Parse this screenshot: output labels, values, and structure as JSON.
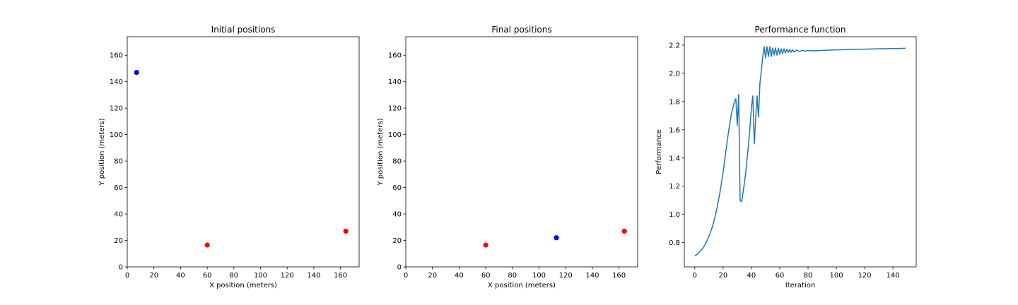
{
  "chart_data": [
    {
      "type": "scatter",
      "title": "Initial positions",
      "xlabel": "X position (meters)",
      "ylabel": "Y position (meters)",
      "xlim": [
        0,
        174
      ],
      "ylim": [
        0,
        174
      ],
      "xticks": [
        0,
        20,
        40,
        60,
        80,
        100,
        120,
        140,
        160
      ],
      "yticks": [
        0,
        20,
        40,
        60,
        80,
        100,
        120,
        140,
        160
      ],
      "grid": false,
      "points": [
        {
          "x": 7,
          "y": 147,
          "color": "#0000ff"
        },
        {
          "x": 60,
          "y": 16.5,
          "color": "#ff0000"
        },
        {
          "x": 164,
          "y": 27,
          "color": "#ff0000"
        }
      ]
    },
    {
      "type": "scatter",
      "title": "Final positions",
      "xlabel": "X position (meters)",
      "ylabel": "Y position (meters)",
      "xlim": [
        0,
        174
      ],
      "ylim": [
        0,
        174
      ],
      "xticks": [
        0,
        20,
        40,
        60,
        80,
        100,
        120,
        140,
        160
      ],
      "yticks": [
        0,
        20,
        40,
        60,
        80,
        100,
        120,
        140,
        160
      ],
      "grid": false,
      "points": [
        {
          "x": 60,
          "y": 16.5,
          "color": "#ff0000"
        },
        {
          "x": 113,
          "y": 22,
          "color": "#0000ff"
        },
        {
          "x": 164,
          "y": 27,
          "color": "#ff0000"
        }
      ]
    },
    {
      "type": "line",
      "title": "Performance function",
      "xlabel": "Iteration",
      "ylabel": "Performance",
      "xlim": [
        -7.4,
        156.4
      ],
      "ylim": [
        0.628,
        2.26
      ],
      "xticks": [
        0,
        20,
        40,
        60,
        80,
        100,
        120,
        140
      ],
      "yticks": [
        0.8,
        1.0,
        1.2,
        1.4,
        1.6,
        1.8,
        2.0,
        2.2
      ],
      "grid": false,
      "series": [
        {
          "color": "#1f77b4",
          "x": [
            0,
            2,
            4,
            6,
            8,
            10,
            12,
            14,
            16,
            18,
            20,
            22,
            24,
            26,
            28,
            29,
            30,
            31,
            32,
            33,
            34,
            35,
            36,
            37,
            38,
            39,
            40,
            41,
            42,
            43,
            44,
            45,
            46,
            47,
            48,
            49,
            50,
            51,
            52,
            53,
            54,
            55,
            56,
            57,
            58,
            59,
            60,
            61,
            62,
            63,
            64,
            65,
            66,
            67,
            68,
            69,
            70,
            72,
            74,
            76,
            78,
            80,
            85,
            90,
            95,
            100,
            105,
            110,
            115,
            120,
            125,
            130,
            135,
            140,
            145,
            149
          ],
          "y": [
            0.705,
            0.72,
            0.74,
            0.765,
            0.8,
            0.845,
            0.9,
            0.97,
            1.06,
            1.17,
            1.3,
            1.45,
            1.6,
            1.72,
            1.8,
            1.82,
            1.63,
            1.85,
            1.1,
            1.09,
            1.15,
            1.22,
            1.3,
            1.4,
            1.5,
            1.62,
            1.76,
            1.84,
            1.5,
            1.68,
            1.84,
            1.69,
            1.93,
            2.02,
            2.12,
            2.19,
            2.11,
            2.19,
            2.12,
            2.19,
            2.12,
            2.18,
            2.13,
            2.18,
            2.13,
            2.18,
            2.135,
            2.175,
            2.14,
            2.175,
            2.145,
            2.17,
            2.148,
            2.17,
            2.15,
            2.168,
            2.152,
            2.165,
            2.155,
            2.163,
            2.158,
            2.162,
            2.16,
            2.163,
            2.165,
            2.167,
            2.168,
            2.17,
            2.171,
            2.172,
            2.173,
            2.174,
            2.175,
            2.176,
            2.177,
            2.178
          ]
        }
      ]
    }
  ]
}
